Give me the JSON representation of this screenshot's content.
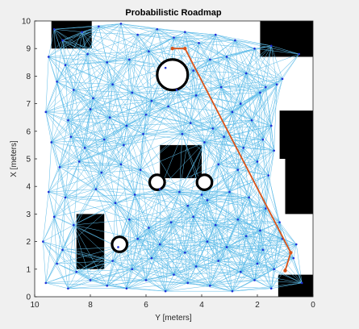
{
  "chart_data": {
    "type": "scatter",
    "title": "Probabilistic Roadmap",
    "xlabel": "Y [meters]",
    "ylabel": "X [meters]",
    "x_reversed": true,
    "xlim": [
      0,
      10
    ],
    "ylim": [
      0,
      10
    ],
    "xticks": [
      "10",
      "8",
      "6",
      "4",
      "2",
      "0"
    ],
    "xtick_values": [
      10,
      8,
      6,
      4,
      2,
      0
    ],
    "yticks": [
      "0",
      "1",
      "2",
      "3",
      "4",
      "5",
      "6",
      "7",
      "8",
      "9",
      "10"
    ],
    "ytick_values": [
      0,
      1,
      2,
      3,
      4,
      5,
      6,
      7,
      8,
      9,
      10
    ],
    "colors": {
      "free_space": "#ffffff",
      "obstacle": "#000000",
      "roadmap_edges": "#5bbbe8",
      "nodes": "#1f2fd6",
      "path": "#d95319"
    },
    "obstacles": [
      {
        "name": "top-left-block",
        "x": [
          9.4,
          7.95
        ],
        "y": [
          9.0,
          10.0
        ]
      },
      {
        "name": "top-right-block",
        "x": [
          1.9,
          0.0
        ],
        "y": [
          8.7,
          10.0
        ]
      },
      {
        "name": "right-top-block",
        "x": [
          1.2,
          0.0
        ],
        "y": [
          5.0,
          6.75
        ]
      },
      {
        "name": "right-bottom-block",
        "x": [
          1.0,
          0.0
        ],
        "y": [
          3.0,
          5.0
        ]
      },
      {
        "name": "center-block",
        "x": [
          5.5,
          4.0
        ],
        "y": [
          4.3,
          5.5
        ]
      },
      {
        "name": "left-block",
        "x": [
          8.5,
          7.5
        ],
        "y": [
          1.0,
          3.0
        ]
      },
      {
        "name": "bottom-right-strip",
        "x": [
          1.25,
          0.0
        ],
        "y": [
          0.0,
          0.8
        ]
      }
    ],
    "rings": [
      {
        "name": "ring-top",
        "x": 5.05,
        "y": 8.05,
        "r": 0.55
      },
      {
        "name": "ring-center-left",
        "x": 5.6,
        "y": 4.15,
        "r": 0.27
      },
      {
        "name": "ring-center-right",
        "x": 3.9,
        "y": 4.15,
        "r": 0.27
      },
      {
        "name": "ring-lower-left",
        "x": 6.95,
        "y": 1.9,
        "r": 0.27
      }
    ],
    "path": {
      "x": [
        5.05,
        4.6,
        0.8,
        1.0
      ],
      "y": [
        9.0,
        9.0,
        1.6,
        0.95
      ]
    },
    "nodes": {
      "x": [
        9.3,
        9.0,
        8.3,
        7.7,
        6.9,
        6.3,
        5.6,
        5.0,
        4.6,
        4.1,
        3.5,
        2.8,
        2.1,
        1.5,
        0.5,
        9.5,
        8.9,
        8.1,
        7.4,
        6.6,
        5.9,
        5.3,
        4.3,
        3.7,
        3.1,
        2.4,
        1.7,
        1.1,
        9.2,
        8.6,
        7.9,
        7.2,
        6.5,
        5.8,
        4.9,
        4.2,
        3.3,
        2.6,
        1.9,
        1.3,
        9.6,
        8.8,
        8.0,
        7.3,
        6.7,
        6.0,
        5.2,
        4.4,
        3.6,
        2.9,
        2.2,
        1.5,
        9.4,
        8.7,
        8.2,
        7.5,
        6.8,
        6.1,
        4.7,
        3.9,
        3.2,
        2.5,
        1.8,
        1.4,
        9.1,
        8.4,
        7.6,
        6.9,
        6.2,
        5.5,
        4.8,
        4.0,
        3.4,
        2.7,
        2.0,
        1.6,
        9.5,
        8.9,
        7.8,
        7.1,
        6.4,
        4.5,
        3.8,
        3.0,
        2.3,
        1.7,
        9.3,
        8.6,
        6.6,
        5.9,
        5.1,
        4.3,
        3.5,
        2.7,
        1.9,
        1.2,
        9.7,
        9.0,
        7.0,
        6.3,
        5.5,
        4.6,
        3.8,
        3.1,
        2.4,
        1.8,
        1.1,
        0.6,
        9.2,
        8.5,
        7.2,
        6.5,
        5.8,
        5.0,
        4.2,
        3.4,
        2.6,
        2.0,
        1.4,
        0.7,
        9.6,
        8.8,
        8.0,
        7.4,
        6.7,
        6.0,
        5.3,
        4.5,
        3.7,
        2.9,
        2.1,
        1.5,
        0.4
      ],
      "y": [
        9.7,
        9.3,
        9.6,
        9.8,
        9.9,
        9.5,
        9.7,
        9.4,
        9.6,
        9.2,
        9.5,
        9.3,
        9.0,
        9.1,
        8.8,
        8.7,
        8.4,
        8.8,
        8.5,
        8.6,
        8.9,
        8.3,
        8.2,
        8.6,
        8.7,
        8.1,
        7.6,
        7.9,
        7.8,
        7.5,
        7.2,
        7.7,
        7.4,
        7.1,
        7.5,
        7.3,
        7.6,
        7.0,
        7.4,
        7.7,
        6.7,
        6.4,
        6.8,
        6.5,
        6.2,
        6.6,
        6.9,
        6.3,
        6.1,
        6.7,
        6.4,
        6.2,
        5.6,
        5.8,
        5.4,
        5.7,
        5.5,
        5.9,
        5.9,
        5.6,
        5.8,
        5.4,
        5.7,
        5.3,
        4.7,
        4.9,
        4.5,
        4.8,
        4.6,
        3.9,
        3.8,
        3.7,
        4.8,
        4.6,
        4.9,
        4.4,
        3.8,
        3.6,
        3.9,
        3.4,
        3.7,
        3.3,
        3.5,
        3.8,
        3.6,
        3.2,
        2.9,
        2.6,
        2.8,
        2.5,
        2.7,
        2.9,
        2.6,
        2.8,
        2.4,
        2.7,
        2.0,
        1.7,
        1.8,
        2.1,
        1.9,
        1.6,
        2.0,
        1.8,
        2.2,
        1.7,
        2.1,
        1.9,
        1.2,
        0.9,
        1.3,
        1.0,
        1.4,
        0.8,
        1.1,
        1.3,
        0.9,
        1.2,
        1.0,
        1.4,
        0.5,
        0.3,
        0.6,
        0.4,
        0.3,
        0.6,
        0.2,
        0.5,
        0.4,
        0.2,
        0.6,
        0.3,
        0.5
      ]
    }
  }
}
